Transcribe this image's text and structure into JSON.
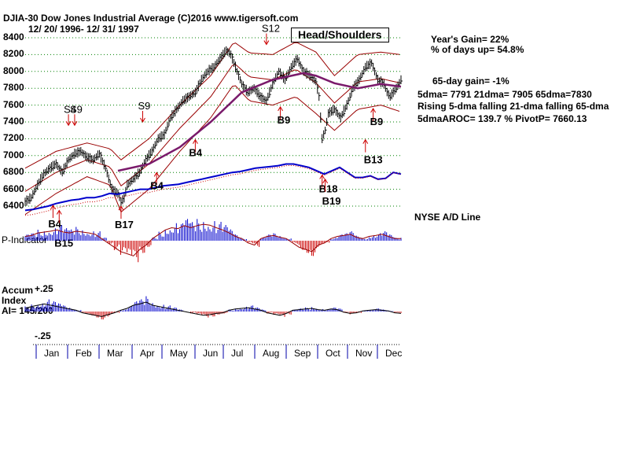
{
  "chart_data": {
    "type": "line",
    "title": "DJIA-30  Dow Jones Industrial Average   (C)2016 www.tigersoft.com",
    "date_range": "12/ 20/ 1996- 12/ 31/ 1997",
    "pattern_label": "Head/Shoulders",
    "ylim": [
      6400,
      8400
    ],
    "y_ticks": [
      "8400",
      "8200",
      "8000",
      "7800",
      "7600",
      "7400",
      "7200",
      "7000",
      "6800",
      "6600",
      "6400"
    ],
    "months": [
      "Jan",
      "Feb",
      "Mar",
      "Apr",
      "May",
      "Jun",
      "Jul",
      "Aug",
      "Sep",
      "Oct",
      "Nov",
      "Dec"
    ],
    "price": [
      [
        0,
        6450
      ],
      [
        4,
        6500
      ],
      [
        8,
        6650
      ],
      [
        12,
        6780
      ],
      [
        16,
        6850
      ],
      [
        20,
        6900
      ],
      [
        24,
        6800
      ],
      [
        28,
        6950
      ],
      [
        32,
        7020
      ],
      [
        36,
        7050
      ],
      [
        40,
        6980
      ],
      [
        44,
        6950
      ],
      [
        48,
        7020
      ],
      [
        52,
        6850
      ],
      [
        56,
        6600
      ],
      [
        60,
        6550
      ],
      [
        62,
        6450
      ],
      [
        64,
        6500
      ],
      [
        66,
        6650
      ],
      [
        70,
        6720
      ],
      [
        74,
        6800
      ],
      [
        78,
        6950
      ],
      [
        82,
        7050
      ],
      [
        86,
        7200
      ],
      [
        90,
        7250
      ],
      [
        94,
        7450
      ],
      [
        98,
        7550
      ],
      [
        102,
        7650
      ],
      [
        106,
        7700
      ],
      [
        110,
        7750
      ],
      [
        114,
        7900
      ],
      [
        118,
        8000
      ],
      [
        122,
        8050
      ],
      [
        126,
        8150
      ],
      [
        130,
        8250
      ],
      [
        133,
        8200
      ],
      [
        136,
        8050
      ],
      [
        140,
        7850
      ],
      [
        144,
        7750
      ],
      [
        148,
        7800
      ],
      [
        152,
        7700
      ],
      [
        156,
        7650
      ],
      [
        160,
        7850
      ],
      [
        164,
        8000
      ],
      [
        168,
        7900
      ],
      [
        172,
        8050
      ],
      [
        176,
        8150
      ],
      [
        180,
        8000
      ],
      [
        184,
        7950
      ],
      [
        188,
        7880
      ],
      [
        190,
        7700
      ],
      [
        192,
        7200
      ],
      [
        194,
        7300
      ],
      [
        196,
        7500
      ],
      [
        200,
        7550
      ],
      [
        204,
        7450
      ],
      [
        208,
        7600
      ],
      [
        212,
        7800
      ],
      [
        216,
        7900
      ],
      [
        220,
        8050
      ],
      [
        224,
        8100
      ],
      [
        228,
        7900
      ],
      [
        232,
        7850
      ],
      [
        234,
        7750
      ],
      [
        236,
        7700
      ],
      [
        238,
        7750
      ],
      [
        240,
        7800
      ],
      [
        243,
        7900
      ]
    ],
    "ma_65": [
      [
        60,
        6820
      ],
      [
        80,
        6900
      ],
      [
        100,
        7100
      ],
      [
        120,
        7400
      ],
      [
        140,
        7750
      ],
      [
        160,
        7900
      ],
      [
        180,
        7980
      ],
      [
        188,
        7950
      ],
      [
        200,
        7860
      ],
      [
        215,
        7800
      ],
      [
        230,
        7850
      ],
      [
        243,
        7820
      ]
    ],
    "upper_band_top": [
      [
        0,
        6850
      ],
      [
        20,
        7050
      ],
      [
        40,
        7150
      ],
      [
        55,
        7080
      ],
      [
        62,
        6950
      ],
      [
        80,
        7200
      ],
      [
        100,
        7600
      ],
      [
        120,
        7950
      ],
      [
        135,
        8350
      ],
      [
        145,
        8220
      ],
      [
        160,
        8200
      ],
      [
        175,
        8350
      ],
      [
        188,
        8230
      ],
      [
        200,
        7950
      ],
      [
        215,
        8200
      ],
      [
        230,
        8230
      ],
      [
        243,
        8200
      ]
    ],
    "lower_band_bottom": [
      [
        0,
        6300
      ],
      [
        20,
        6550
      ],
      [
        40,
        6750
      ],
      [
        55,
        6650
      ],
      [
        62,
        6330
      ],
      [
        80,
        6600
      ],
      [
        100,
        7050
      ],
      [
        120,
        7450
      ],
      [
        135,
        7850
      ],
      [
        145,
        7650
      ],
      [
        160,
        7600
      ],
      [
        175,
        7700
      ],
      [
        188,
        7500
      ],
      [
        200,
        7300
      ],
      [
        215,
        7550
      ],
      [
        230,
        7600
      ],
      [
        243,
        7520
      ]
    ],
    "ad_line_y": [
      6350,
      6360,
      6380,
      6400,
      6430,
      6450,
      6470,
      6480,
      6500,
      6500,
      6520,
      6550,
      6540,
      6560,
      6580,
      6600,
      6600,
      6620,
      6640,
      6650,
      6660,
      6680,
      6700,
      6720,
      6740,
      6760,
      6780,
      6800,
      6810,
      6830,
      6850,
      6860,
      6870,
      6880,
      6900,
      6900,
      6880,
      6860,
      6820,
      6780,
      6820,
      6860,
      6800,
      6740,
      6740,
      6760,
      6720,
      6730,
      6800,
      6780
    ],
    "p_indicator": [
      10,
      12,
      18,
      20,
      22,
      25,
      20,
      18,
      22,
      20,
      18,
      15,
      5,
      -5,
      -15,
      -25,
      -30,
      -35,
      -20,
      -10,
      5,
      15,
      25,
      30,
      28,
      35,
      30,
      35,
      38,
      36,
      30,
      25,
      18,
      10,
      5,
      -5,
      -10,
      5,
      10,
      12,
      8,
      5,
      -5,
      -15,
      -20,
      -25,
      -10,
      -5,
      5,
      10,
      12,
      15,
      8,
      5,
      10,
      12,
      15,
      10,
      5,
      5
    ],
    "accum_index": [
      5,
      8,
      10,
      12,
      10,
      8,
      6,
      4,
      2,
      -2,
      -4,
      -6,
      -8,
      -5,
      -2,
      2,
      5,
      10,
      12,
      15,
      10,
      8,
      6,
      4,
      2,
      0,
      -2,
      -4,
      -6,
      -5,
      -3,
      -2,
      2,
      4,
      5,
      6,
      4,
      2,
      -2,
      -4,
      -6,
      -3,
      2,
      3,
      4,
      5,
      3,
      2,
      4,
      3,
      -1,
      -3,
      -2,
      1,
      2,
      3,
      2,
      1,
      -2,
      -3
    ],
    "signals_up": [
      "B4",
      "B15",
      "B17",
      "B4",
      "B4",
      "B9",
      "B18",
      "B19",
      "B9",
      "B13"
    ],
    "signals_down": [
      "S4",
      "S9",
      "S9",
      "S12"
    ],
    "labels": {
      "p_indicator": "P-Indicator",
      "nyse_ad": "NYSE A/D Line",
      "accum_top": "+.25",
      "accum_title_1": "Accum",
      "accum_title_2": "Index",
      "accum_ai": "AI= 145/200",
      "accum_bottom": "-.25"
    },
    "stats": {
      "years_gain": "Year's Gain= 22%",
      "days_up": "% of days up= 54.8%",
      "gain_65": "65-day gain= -1%",
      "dma_line": "5dma= 7791  21dma= 7905  65dma=7830",
      "rising_line": "Rising 5-dma  falling 21-dma  falling 65-dma",
      "aroc_line": "5dmaAROC= 139.7  %   PivotP= 7660.13"
    },
    "colors": {
      "price_bars": "#000000",
      "ma_65": "#7a1a6b",
      "bands": "#990000",
      "ad_line": "#0000cc",
      "positive": "#0000cc",
      "negative": "#cc0000",
      "grid": "#008000"
    }
  }
}
